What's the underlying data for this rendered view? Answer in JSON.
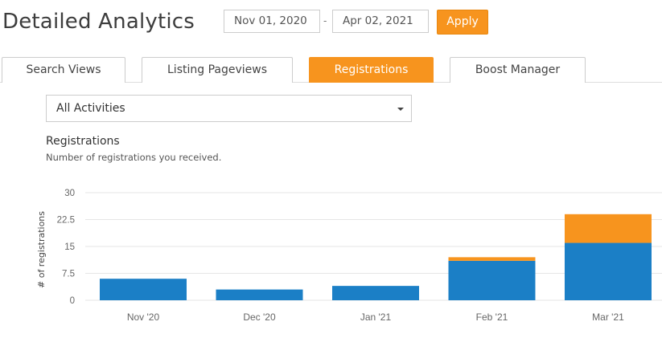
{
  "header": {
    "title": "Detailed Analytics",
    "start_date": "Nov 01, 2020",
    "date_separator": "-",
    "end_date": "Apr 02, 2021",
    "apply_label": "Apply"
  },
  "tabs": [
    {
      "label": "Search Views",
      "active": false
    },
    {
      "label": "Listing Pageviews",
      "active": false
    },
    {
      "label": "Registrations",
      "active": true
    },
    {
      "label": "Boost Manager",
      "active": false
    }
  ],
  "filter": {
    "selected": "All Activities"
  },
  "chart_data": {
    "type": "bar",
    "stacked": true,
    "title": "Registrations",
    "subtitle": "Number of registrations you received.",
    "ylabel": "# of registrations",
    "xlabel": "",
    "categories": [
      "Nov '20",
      "Dec '20",
      "Jan '21",
      "Feb '21",
      "Mar '21"
    ],
    "series": [
      {
        "color": "#1b7fc6",
        "values": [
          6,
          3,
          4,
          11,
          16
        ]
      },
      {
        "color": "#f7941e",
        "values": [
          0,
          0,
          0,
          1,
          8
        ]
      }
    ],
    "yticks": [
      "0",
      "7.5",
      "15",
      "22.5",
      "30"
    ],
    "ylim": [
      0,
      30
    ],
    "grid": true
  }
}
